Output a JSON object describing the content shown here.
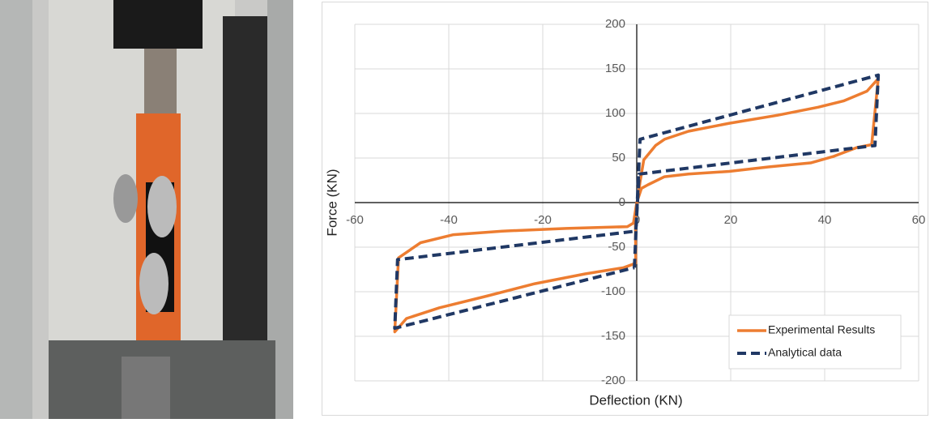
{
  "chart_data": {
    "type": "line",
    "xlabel": "Deflection (KN)",
    "ylabel": "Force (KN)",
    "xlim": [
      -60,
      60
    ],
    "xticks": [
      -60,
      -40,
      -20,
      0,
      20,
      40,
      60
    ],
    "ylim": [
      -200,
      200
    ],
    "yticks": [
      -200,
      -150,
      -100,
      -50,
      0,
      50,
      100,
      150,
      200
    ],
    "grid": true,
    "legend": "lower right",
    "series": [
      {
        "name": "Experimental Results",
        "color": "#ED7D31",
        "dash": false,
        "x": [
          0,
          1,
          2.4,
          5.9,
          11,
          19.7,
          28,
          37,
          42,
          47,
          50,
          51.4,
          49,
          44,
          38.6,
          30,
          19.7,
          11,
          5.9,
          4,
          1.5,
          0.7,
          0,
          -0.3,
          -0.2,
          -2.8,
          -11,
          -21.7,
          -32,
          -42,
          -49,
          -51.5,
          -50.7,
          -46,
          -39,
          -28.6,
          -15,
          -2,
          -0.7,
          0
        ],
        "values": [
          0,
          16,
          20,
          29,
          32,
          35,
          40,
          44.5,
          52,
          62,
          65,
          139,
          125,
          114,
          107,
          98,
          89,
          80,
          71,
          64,
          48,
          23,
          -5,
          -18,
          -68,
          -73,
          -80,
          -91,
          -105,
          -118,
          -130,
          -145,
          -62,
          -45,
          -36,
          -32,
          -29,
          -27,
          -23,
          0
        ]
      },
      {
        "name": "Analytical data",
        "color": "#203864",
        "dash": true,
        "x": [
          -0.5,
          0.7,
          51.4,
          50.7,
          0.5,
          -0.2,
          -50.9,
          -51.5,
          -0.5
        ],
        "values": [
          -73,
          71,
          143,
          64,
          32,
          -32,
          -64,
          -141,
          -73
        ]
      }
    ]
  }
}
